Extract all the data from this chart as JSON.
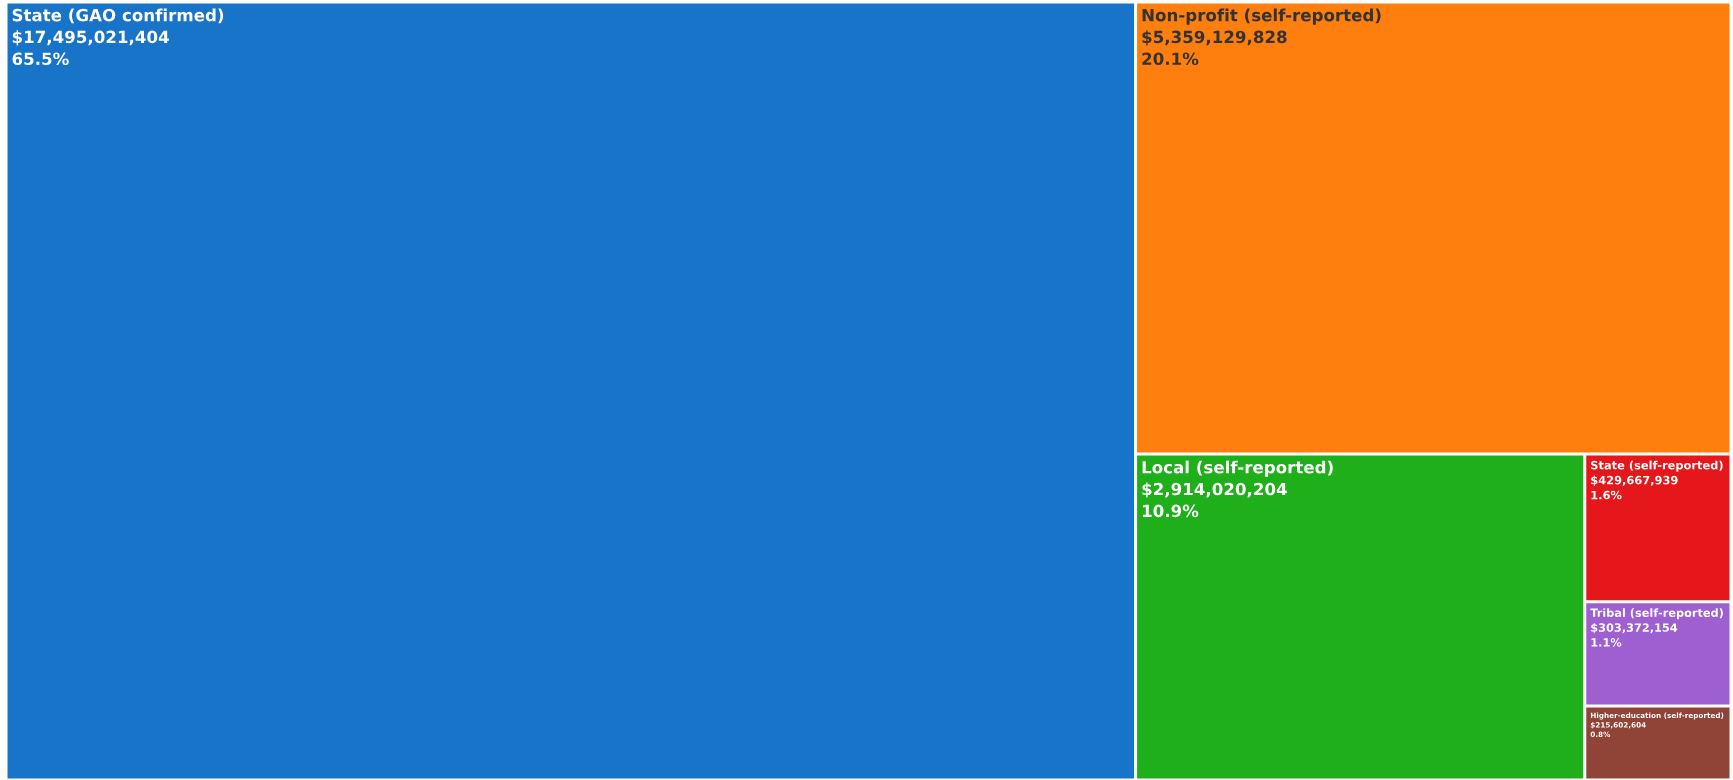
{
  "chart_data": {
    "type": "other",
    "categories": [
      "State (GAO confirmed)",
      "Non-profit (self-reported)",
      "Local (self-reported)",
      "State (self-reported)",
      "Tribal (self-reported)",
      "Higher-education (self-reported)"
    ],
    "values": [
      17495021404,
      5359129828,
      2914020204,
      429667939,
      303372154,
      215602604
    ],
    "value_labels": [
      "$17,495,021,404\n65.5%",
      "$5,359,129,828\n20.1%",
      "$2,914,020,204\n10.9%",
      "$429,667,939\n1.6%",
      "$303,372,154\n1.1%",
      "$215,602,604\n0.8%"
    ],
    "colors": [
      "#1874c8",
      "#ff7f0e",
      "#1faf1b",
      "#e5171b",
      "#9e5fd0",
      "#8f4437"
    ]
  }
}
